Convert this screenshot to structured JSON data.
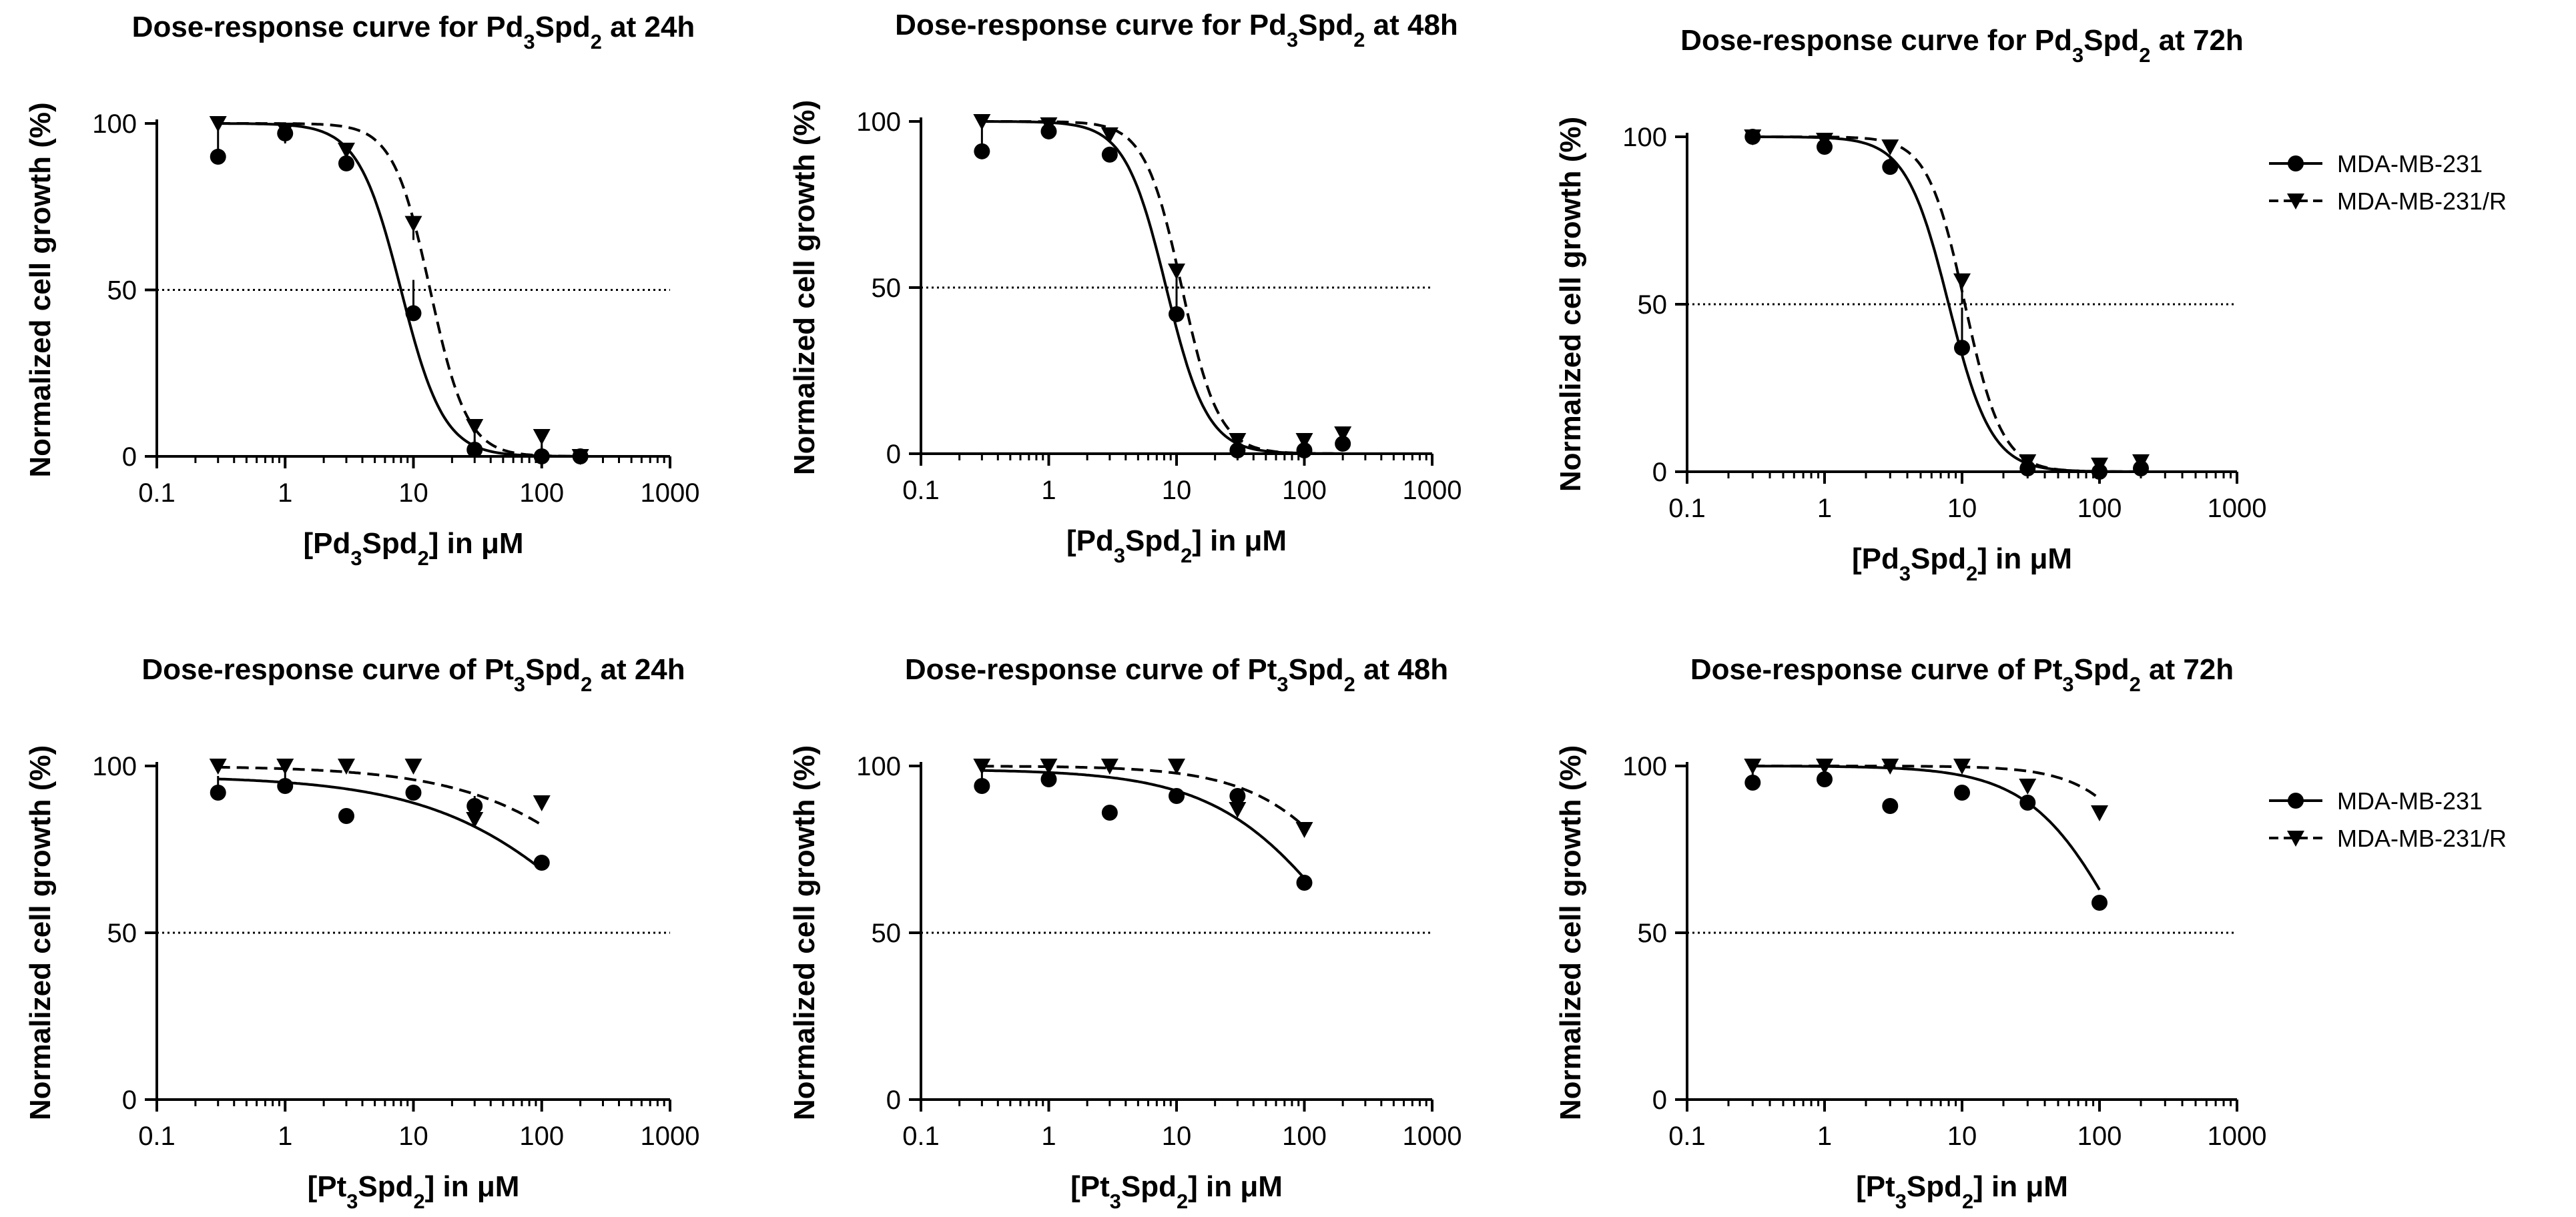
{
  "colors": {
    "ink": "#000000",
    "background": "#ffffff"
  },
  "legend": {
    "labels": [
      "MDA-MB-231",
      "MDA-MB-231/R"
    ]
  },
  "chart_data": [
    {
      "type": "scatter",
      "title": "Dose-response curve for Pd3Spd2 at 24h",
      "title_parts": [
        "Dose-response curve for Pd",
        "3",
        "Spd",
        "2",
        " at 24h"
      ],
      "xlabel": "[Pd3Spd2] in μM",
      "xlabel_parts": [
        "[Pd",
        "3",
        "Spd",
        "2",
        "] in μM"
      ],
      "ylabel": "Normalized cell growth (%)",
      "xscale": "log",
      "xlim": [
        0.1,
        1000
      ],
      "ylim": [
        0,
        100
      ],
      "xticks": [
        "0.1",
        "1",
        "10",
        "100",
        "1000"
      ],
      "yticks": [
        "0",
        "50",
        "100"
      ],
      "reference_line": 50,
      "legend_position": "none",
      "series": [
        {
          "name": "MDA-MB-231",
          "marker": "circle",
          "line": "solid",
          "ic50": 8.0,
          "hill": 2.6,
          "top": 100,
          "points": [
            {
              "x": 0.3,
              "y": 90,
              "err": 8
            },
            {
              "x": 1,
              "y": 97,
              "err": 3
            },
            {
              "x": 3,
              "y": 88,
              "err": 3
            },
            {
              "x": 10,
              "y": 43,
              "err": 10
            },
            {
              "x": 30,
              "y": 2,
              "err": 3
            },
            {
              "x": 100,
              "y": 0,
              "err": 3
            },
            {
              "x": 200,
              "y": 0,
              "err": 1
            }
          ]
        },
        {
          "name": "MDA-MB-231/R",
          "marker": "triangle-down",
          "line": "dashed",
          "ic50": 13.5,
          "hill": 3.0,
          "top": 100,
          "points": [
            {
              "x": 0.3,
              "y": 100,
              "err": 1
            },
            {
              "x": 1,
              "y": 98,
              "err": 4
            },
            {
              "x": 3,
              "y": 92,
              "err": 3
            },
            {
              "x": 10,
              "y": 70,
              "err": 5
            },
            {
              "x": 30,
              "y": 9,
              "err": 7
            },
            {
              "x": 100,
              "y": 6,
              "err": 5
            },
            {
              "x": 200,
              "y": 0,
              "err": 1
            }
          ]
        }
      ]
    },
    {
      "type": "scatter",
      "title": "Dose-response curve for Pd3Spd2 at 48h",
      "title_parts": [
        "Dose-response curve for Pd",
        "3",
        "Spd",
        "2",
        " at 48h"
      ],
      "xlabel": "[Pd3Spd2] in μM",
      "xlabel_parts": [
        "[Pd",
        "3",
        "Spd",
        "2",
        "] in μM"
      ],
      "ylabel": "Normalized cell growth (%)",
      "xscale": "log",
      "xlim": [
        0.1,
        1000
      ],
      "ylim": [
        0,
        100
      ],
      "xticks": [
        "0.1",
        "1",
        "10",
        "100",
        "1000"
      ],
      "yticks": [
        "0",
        "50",
        "100"
      ],
      "reference_line": 50,
      "legend_position": "none",
      "series": [
        {
          "name": "MDA-MB-231",
          "marker": "circle",
          "line": "solid",
          "ic50": 8.3,
          "hill": 2.7,
          "top": 100,
          "points": [
            {
              "x": 0.3,
              "y": 91,
              "err": 8
            },
            {
              "x": 1,
              "y": 97,
              "err": 3
            },
            {
              "x": 3,
              "y": 90,
              "err": 2
            },
            {
              "x": 10,
              "y": 42,
              "err": 13
            },
            {
              "x": 30,
              "y": 1,
              "err": 2
            },
            {
              "x": 100,
              "y": 1,
              "err": 3
            },
            {
              "x": 200,
              "y": 3,
              "err": 3
            }
          ]
        },
        {
          "name": "MDA-MB-231/R",
          "marker": "triangle-down",
          "line": "dashed",
          "ic50": 11,
          "hill": 3.0,
          "top": 100,
          "points": [
            {
              "x": 0.3,
              "y": 100,
              "err": 1
            },
            {
              "x": 1,
              "y": 99,
              "err": 2
            },
            {
              "x": 3,
              "y": 96,
              "err": 2
            },
            {
              "x": 10,
              "y": 55,
              "err": 6
            },
            {
              "x": 30,
              "y": 4,
              "err": 3
            },
            {
              "x": 100,
              "y": 4,
              "err": 3
            },
            {
              "x": 200,
              "y": 6,
              "err": 3
            }
          ]
        }
      ]
    },
    {
      "type": "scatter",
      "title": "Dose-response curve for Pd3Spd2 at 72h",
      "title_parts": [
        "Dose-response curve for Pd",
        "3",
        "Spd",
        "2",
        " at 72h"
      ],
      "xlabel": "[Pd3Spd2] in μM",
      "xlabel_parts": [
        "[Pd",
        "3",
        "Spd",
        "2",
        "] in μM"
      ],
      "ylabel": "Normalized cell growth (%)",
      "xscale": "log",
      "xlim": [
        0.1,
        1000
      ],
      "ylim": [
        0,
        100
      ],
      "xticks": [
        "0.1",
        "1",
        "10",
        "100",
        "1000"
      ],
      "yticks": [
        "0",
        "50",
        "100"
      ],
      "reference_line": 50,
      "legend_position": "right",
      "series": [
        {
          "name": "MDA-MB-231",
          "marker": "circle",
          "line": "solid",
          "ic50": 8.0,
          "hill": 2.8,
          "top": 100,
          "points": [
            {
              "x": 0.3,
              "y": 100,
              "err": 1
            },
            {
              "x": 1,
              "y": 97,
              "err": 2
            },
            {
              "x": 3,
              "y": 91,
              "err": 3
            },
            {
              "x": 10,
              "y": 37,
              "err": 12
            },
            {
              "x": 30,
              "y": 1,
              "err": 2
            },
            {
              "x": 100,
              "y": 0,
              "err": 2
            },
            {
              "x": 200,
              "y": 1,
              "err": 2
            }
          ]
        },
        {
          "name": "MDA-MB-231/R",
          "marker": "triangle-down",
          "line": "dashed",
          "ic50": 10.5,
          "hill": 3.2,
          "top": 100,
          "points": [
            {
              "x": 0.3,
              "y": 100,
              "err": 1
            },
            {
              "x": 1,
              "y": 99,
              "err": 1
            },
            {
              "x": 3,
              "y": 97,
              "err": 2
            },
            {
              "x": 10,
              "y": 57,
              "err": 7
            },
            {
              "x": 30,
              "y": 3,
              "err": 2
            },
            {
              "x": 100,
              "y": 2,
              "err": 2
            },
            {
              "x": 200,
              "y": 3,
              "err": 2
            }
          ]
        }
      ]
    },
    {
      "type": "scatter",
      "title": "Dose-response curve of  Pt3Spd2 at 24h",
      "title_parts": [
        "Dose-response curve of  Pt",
        "3",
        "Spd",
        "2",
        " at 24h"
      ],
      "xlabel": "[Pt3Spd2] in μM",
      "xlabel_parts": [
        "[Pt",
        "3",
        "Spd",
        "2",
        "] in μM"
      ],
      "ylabel": "Normalized cell growth (%)",
      "xscale": "log",
      "xlim": [
        0.1,
        1000
      ],
      "ylim": [
        0,
        100
      ],
      "xticks": [
        "0.1",
        "1",
        "10",
        "100",
        "1000"
      ],
      "yticks": [
        "0",
        "50",
        "100"
      ],
      "reference_line": 50,
      "legend_position": "none",
      "series": [
        {
          "name": "MDA-MB-231",
          "marker": "circle",
          "line": "solid",
          "ic50": 400,
          "hill": 0.65,
          "top": 97,
          "points": [
            {
              "x": 0.3,
              "y": 92,
              "err": 5
            },
            {
              "x": 1,
              "y": 94,
              "err": 4
            },
            {
              "x": 3,
              "y": 85,
              "err": 1
            },
            {
              "x": 10,
              "y": 92,
              "err": 2
            },
            {
              "x": 30,
              "y": 88,
              "err": 3
            },
            {
              "x": 100,
              "y": 71,
              "err": 1
            }
          ]
        },
        {
          "name": "MDA-MB-231/R",
          "marker": "triangle-down",
          "line": "dashed",
          "ic50": 900,
          "hill": 0.7,
          "top": 100,
          "points": [
            {
              "x": 0.3,
              "y": 100,
              "err": 1
            },
            {
              "x": 1,
              "y": 100,
              "err": 1
            },
            {
              "x": 3,
              "y": 100,
              "err": 1
            },
            {
              "x": 10,
              "y": 100,
              "err": 1
            },
            {
              "x": 30,
              "y": 84,
              "err": 2
            },
            {
              "x": 100,
              "y": 89,
              "err": 1
            }
          ]
        }
      ]
    },
    {
      "type": "scatter",
      "title": "Dose-response curve of Pt3Spd2 at 48h",
      "title_parts": [
        "Dose-response curve of Pt",
        "3",
        "Spd",
        "2",
        " at 48h"
      ],
      "xlabel": "[Pt3Spd2] in μM",
      "xlabel_parts": [
        "[Pt",
        "3",
        "Spd",
        "2",
        "] in μM"
      ],
      "ylabel": "Normalized cell growth (%)",
      "xscale": "log",
      "xlim": [
        0.1,
        1000
      ],
      "ylim": [
        0,
        100
      ],
      "xticks": [
        "0.1",
        "1",
        "10",
        "100",
        "1000"
      ],
      "yticks": [
        "0",
        "50",
        "100"
      ],
      "reference_line": 50,
      "legend_position": "none",
      "series": [
        {
          "name": "MDA-MB-231",
          "marker": "circle",
          "line": "solid",
          "ic50": 230,
          "hill": 0.85,
          "top": 99,
          "points": [
            {
              "x": 0.3,
              "y": 94,
              "err": 5
            },
            {
              "x": 1,
              "y": 96,
              "err": 3
            },
            {
              "x": 3,
              "y": 86,
              "err": 1
            },
            {
              "x": 10,
              "y": 91,
              "err": 2
            },
            {
              "x": 30,
              "y": 91,
              "err": 2
            },
            {
              "x": 100,
              "y": 65,
              "err": 1
            }
          ]
        },
        {
          "name": "MDA-MB-231/R",
          "marker": "triangle-down",
          "line": "dashed",
          "ic50": 450,
          "hill": 1.0,
          "top": 100,
          "points": [
            {
              "x": 0.3,
              "y": 100,
              "err": 1
            },
            {
              "x": 1,
              "y": 100,
              "err": 1
            },
            {
              "x": 3,
              "y": 100,
              "err": 1
            },
            {
              "x": 10,
              "y": 100,
              "err": 1
            },
            {
              "x": 30,
              "y": 87,
              "err": 2
            },
            {
              "x": 100,
              "y": 81,
              "err": 1
            }
          ]
        }
      ]
    },
    {
      "type": "scatter",
      "title": "Dose-response curve of Pt3Spd2 at 72h",
      "title_parts": [
        "Dose-response curve of Pt",
        "3",
        "Spd",
        "2",
        " at 72h"
      ],
      "xlabel": "[Pt3Spd2] in μM",
      "xlabel_parts": [
        "[Pt",
        "3",
        "Spd",
        "2",
        "] in μM"
      ],
      "ylabel": "Normalized cell growth (%)",
      "xscale": "log",
      "xlim": [
        0.1,
        1000
      ],
      "ylim": [
        0,
        100
      ],
      "xticks": [
        "0.1",
        "1",
        "10",
        "100",
        "1000"
      ],
      "yticks": [
        "0",
        "50",
        "100"
      ],
      "reference_line": 50,
      "legend_position": "right",
      "series": [
        {
          "name": "MDA-MB-231",
          "marker": "circle",
          "line": "solid",
          "ic50": 150,
          "hill": 1.3,
          "top": 100,
          "points": [
            {
              "x": 0.3,
              "y": 95,
              "err": 4
            },
            {
              "x": 1,
              "y": 96,
              "err": 3
            },
            {
              "x": 3,
              "y": 88,
              "err": 1
            },
            {
              "x": 10,
              "y": 92,
              "err": 1
            },
            {
              "x": 30,
              "y": 89,
              "err": 2
            },
            {
              "x": 100,
              "y": 59,
              "err": 2
            }
          ]
        },
        {
          "name": "MDA-MB-231/R",
          "marker": "triangle-down",
          "line": "dashed",
          "ic50": 400,
          "hill": 1.6,
          "top": 100,
          "points": [
            {
              "x": 0.3,
              "y": 100,
              "err": 1
            },
            {
              "x": 1,
              "y": 100,
              "err": 1
            },
            {
              "x": 3,
              "y": 100,
              "err": 1
            },
            {
              "x": 10,
              "y": 100,
              "err": 1
            },
            {
              "x": 30,
              "y": 94,
              "err": 1
            },
            {
              "x": 100,
              "y": 86,
              "err": 1
            }
          ]
        }
      ]
    }
  ]
}
